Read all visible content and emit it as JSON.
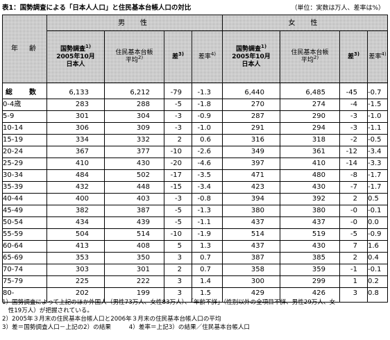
{
  "title": "表1：国勢調査による「日本人人口」と住民基本台帳人口の対比",
  "unit": "（単位：実数は万人、差率は%）",
  "headers": {
    "age": "年　齢",
    "male": "男　性",
    "female": "女　性",
    "census": "国勢調査",
    "census_date": "2005年10月",
    "census_pop": "日本人",
    "registry": "住民基本台帳",
    "registry_avg": "平均",
    "diff": "差",
    "rate": "差率",
    "sup1": "1)",
    "sup2": "2)",
    "sup3": "3)",
    "sup4": "4)"
  },
  "rows": [
    {
      "label": "総　数",
      "m": [
        "6,133",
        "6,212",
        "-79",
        "-1.3"
      ],
      "f": [
        "6,440",
        "6,485",
        "-45",
        "-0.7"
      ]
    },
    {
      "label": "0-4歳",
      "m": [
        "283",
        "288",
        "-5",
        "-1.8"
      ],
      "f": [
        "270",
        "274",
        "-4",
        "-1.5"
      ]
    },
    {
      "label": "5-9",
      "m": [
        "301",
        "304",
        "-3",
        "-0.9"
      ],
      "f": [
        "287",
        "290",
        "-3",
        "-1.0"
      ]
    },
    {
      "label": "10-14",
      "m": [
        "306",
        "309",
        "-3",
        "-1.0"
      ],
      "f": [
        "291",
        "294",
        "-3",
        "-1.1"
      ]
    },
    {
      "label": "15-19",
      "m": [
        "334",
        "332",
        "2",
        "0.6"
      ],
      "f": [
        "316",
        "318",
        "-2",
        "-0.5"
      ]
    },
    {
      "label": "20-24",
      "m": [
        "367",
        "377",
        "-10",
        "-2.6"
      ],
      "f": [
        "349",
        "361",
        "-12",
        "-3.4"
      ]
    },
    {
      "label": "25-29",
      "m": [
        "410",
        "430",
        "-20",
        "-4.6"
      ],
      "f": [
        "397",
        "410",
        "-14",
        "-3.3"
      ]
    },
    {
      "label": "30-34",
      "m": [
        "484",
        "502",
        "-17",
        "-3.5"
      ],
      "f": [
        "471",
        "480",
        "-8",
        "-1.7"
      ]
    },
    {
      "label": "35-39",
      "m": [
        "432",
        "448",
        "-15",
        "-3.4"
      ],
      "f": [
        "423",
        "430",
        "-7",
        "-1.7"
      ]
    },
    {
      "label": "40-44",
      "m": [
        "400",
        "403",
        "-3",
        "-0.8"
      ],
      "f": [
        "394",
        "392",
        "2",
        "0.5"
      ]
    },
    {
      "label": "45-49",
      "m": [
        "382",
        "387",
        "-5",
        "-1.3"
      ],
      "f": [
        "380",
        "380",
        "-0",
        "-0.1"
      ]
    },
    {
      "label": "50-54",
      "m": [
        "434",
        "439",
        "-5",
        "-1.1"
      ],
      "f": [
        "437",
        "437",
        "-0",
        "0.0"
      ]
    },
    {
      "label": "55-59",
      "m": [
        "504",
        "514",
        "-10",
        "-1.9"
      ],
      "f": [
        "514",
        "519",
        "-5",
        "-0.9"
      ]
    },
    {
      "label": "60-64",
      "m": [
        "413",
        "408",
        "5",
        "1.3"
      ],
      "f": [
        "437",
        "430",
        "7",
        "1.6"
      ]
    },
    {
      "label": "65-69",
      "m": [
        "353",
        "350",
        "3",
        "0.7"
      ],
      "f": [
        "387",
        "385",
        "2",
        "0.4"
      ]
    },
    {
      "label": "70-74",
      "m": [
        "303",
        "301",
        "2",
        "0.7"
      ],
      "f": [
        "358",
        "359",
        "-1",
        "-0.1"
      ]
    },
    {
      "label": "75-79",
      "m": [
        "225",
        "222",
        "3",
        "1.4"
      ],
      "f": [
        "300",
        "299",
        "1",
        "0.2"
      ]
    },
    {
      "label": "80-",
      "m": [
        "202",
        "199",
        "3",
        "1.5"
      ],
      "f": [
        "429",
        "426",
        "3",
        "0.8"
      ]
    }
  ],
  "notes": [
    "1）国勢調査によって上記のほか外国人（男性73万人、女性83万人）、「年齢不詳」（性別以外の全項目不詳、男性29万人、女",
    "　性19万人）が把握されている。",
    "2）2005年３月末の住民基本台帳人口と2006年３月末の住民基本台帳人口の平均",
    "3）差＝国勢調査人口－上記の2）の結果　　　4）差率＝上記3）の結果／住民基本台帳人口"
  ]
}
